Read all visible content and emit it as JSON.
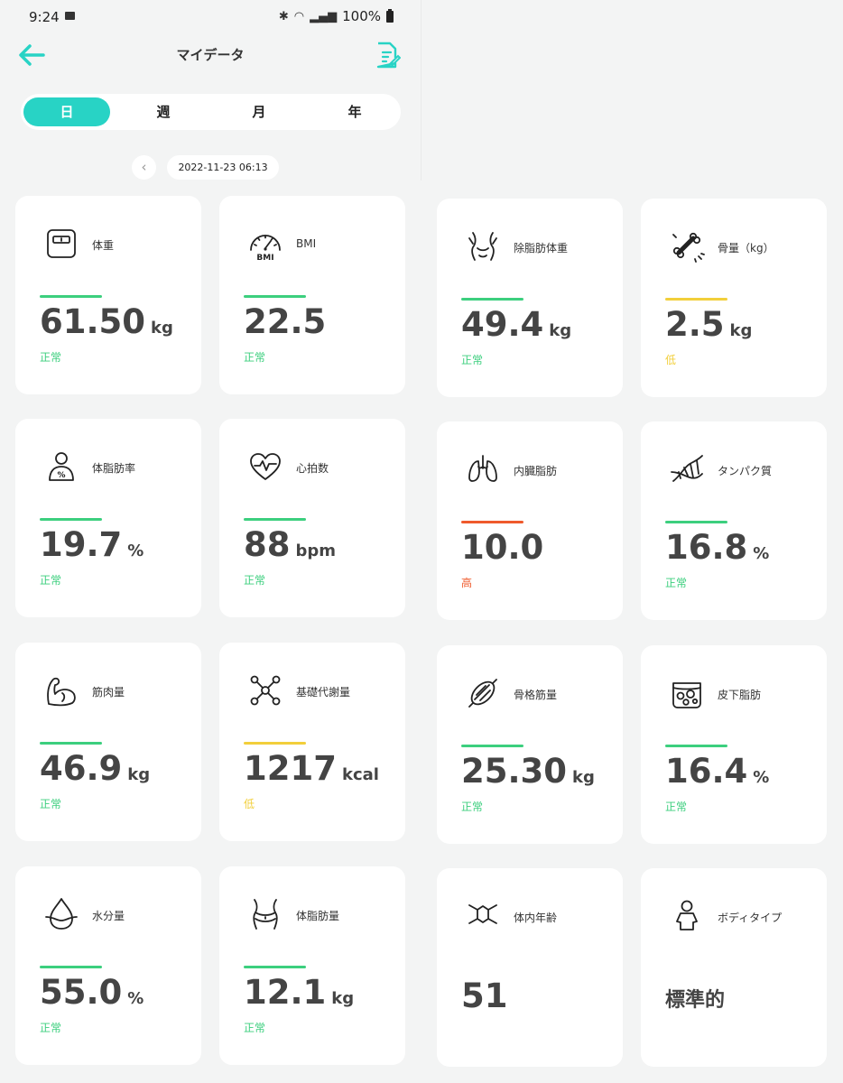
{
  "status_bar": {
    "time": "9:24",
    "battery": "100%"
  },
  "header": {
    "title": "マイデータ"
  },
  "period_tabs": [
    {
      "label": "日",
      "active": true
    },
    {
      "label": "週",
      "active": false
    },
    {
      "label": "月",
      "active": false
    },
    {
      "label": "年",
      "active": false
    }
  ],
  "date_nav": {
    "date": "2022-11-23 06:13",
    "prev_glyph": "‹"
  },
  "colors": {
    "accent": "#28d3c5",
    "normal": "#3ccf7e",
    "low": "#f2cf3b",
    "high": "#ef5a2c"
  },
  "metrics": [
    {
      "label": "体重",
      "value": "61.50",
      "unit": "kg",
      "status": "正常",
      "level": "normal",
      "icon": "scale-icon"
    },
    {
      "label": "BMI",
      "value": "22.5",
      "unit": "",
      "status": "正常",
      "level": "normal",
      "icon": "bmi-gauge-icon",
      "icon_text": "BMI"
    },
    {
      "label": "除脂肪体重",
      "value": "49.4",
      "unit": "kg",
      "status": "正常",
      "level": "normal",
      "icon": "torso-icon"
    },
    {
      "label": "骨量（kg）",
      "value": "2.5",
      "unit": "kg",
      "status": "低",
      "level": "low",
      "icon": "bone-icon"
    },
    {
      "label": "体脂肪率",
      "value": "19.7",
      "unit": "%",
      "status": "正常",
      "level": "normal",
      "icon": "body-fat-person-icon"
    },
    {
      "label": "心拍数",
      "value": "88",
      "unit": "bpm",
      "status": "正常",
      "level": "normal",
      "icon": "heart-rate-icon"
    },
    {
      "label": "内臓脂肪",
      "value": "10.0",
      "unit": "",
      "status": "高",
      "level": "high",
      "icon": "lungs-icon"
    },
    {
      "label": "タンパク質",
      "value": "16.8",
      "unit": "%",
      "status": "正常",
      "level": "normal",
      "icon": "dna-icon"
    },
    {
      "label": "筋肉量",
      "value": "46.9",
      "unit": "kg",
      "status": "正常",
      "level": "normal",
      "icon": "flexed-arm-icon"
    },
    {
      "label": "基礎代謝量",
      "value": "1217",
      "unit": "kcal",
      "status": "低",
      "level": "low",
      "icon": "molecule-icon"
    },
    {
      "label": "骨格筋量",
      "value": "25.30",
      "unit": "kg",
      "status": "正常",
      "level": "normal",
      "icon": "muscle-fiber-icon"
    },
    {
      "label": "皮下脂肪",
      "value": "16.4",
      "unit": "%",
      "status": "正常",
      "level": "normal",
      "icon": "fat-cells-icon"
    },
    {
      "label": "水分量",
      "value": "55.0",
      "unit": "%",
      "status": "正常",
      "level": "normal",
      "icon": "water-drop-icon"
    },
    {
      "label": "体脂肪量",
      "value": "12.1",
      "unit": "kg",
      "status": "正常",
      "level": "normal",
      "icon": "waist-icon"
    },
    {
      "label": "体内年齢",
      "value": "51",
      "unit": "",
      "status": "",
      "level": "none",
      "icon": "hexagon-molecule-icon"
    },
    {
      "label": "ボディタイプ",
      "value": "標準的",
      "unit": "",
      "status": "",
      "level": "none",
      "icon": "person-icon"
    }
  ]
}
